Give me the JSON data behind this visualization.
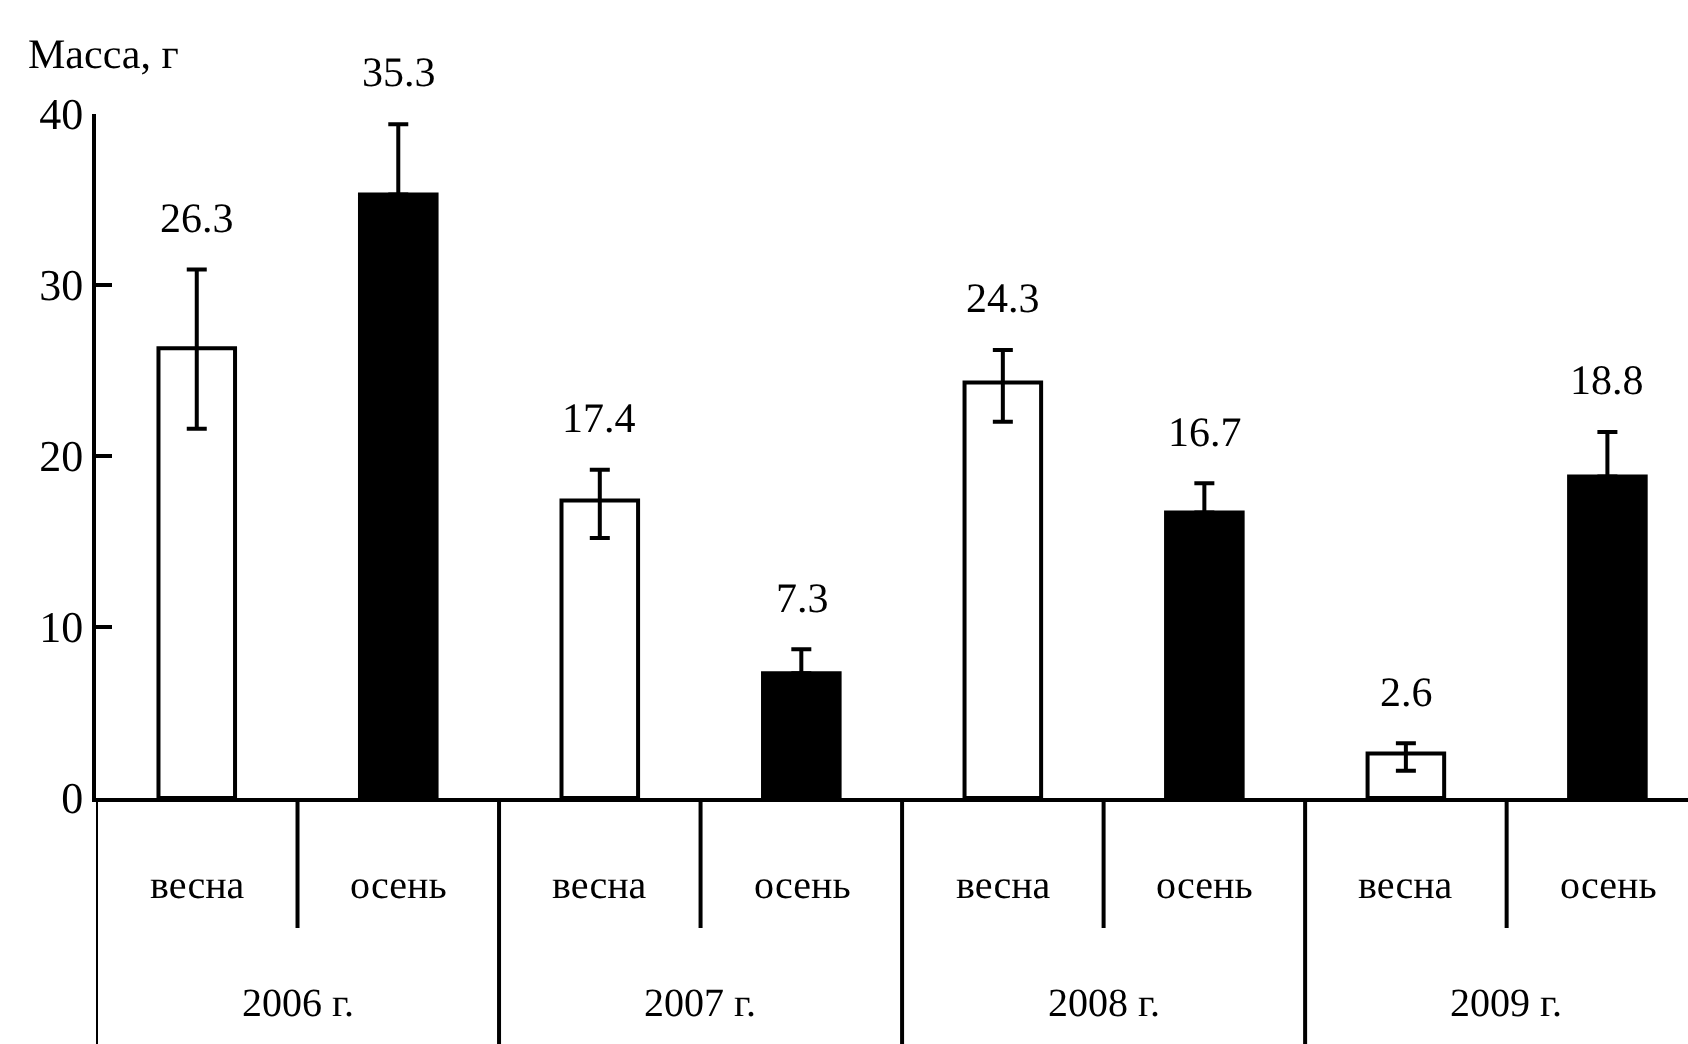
{
  "chart_data": {
    "type": "bar",
    "ylabel": "Масса, г",
    "categories": [
      "весна",
      "осень",
      "весна",
      "осень",
      "весна",
      "осень",
      "весна",
      "осень"
    ],
    "values": [
      26.3,
      35.3,
      17.4,
      7.3,
      24.3,
      16.7,
      2.6,
      18.8
    ],
    "colors": [
      "#ffffff",
      "#000000",
      "#ffffff",
      "#000000",
      "#ffffff",
      "#000000",
      "#ffffff",
      "#000000"
    ],
    "errors": [
      [
        21.6,
        30.9
      ],
      [
        35.3,
        39.4
      ],
      [
        15.2,
        19.2
      ],
      [
        7.3,
        8.7
      ],
      [
        22.0,
        26.2
      ],
      [
        16.7,
        18.4
      ],
      [
        1.6,
        3.2
      ],
      [
        18.8,
        21.4
      ]
    ],
    "annotations": [
      "2006 г.",
      "2007 г.",
      "2008 г.",
      "2009 г."
    ],
    "ylim": [
      0,
      40
    ],
    "yticks": [
      0,
      10,
      20,
      30,
      40
    ],
    "grid": false,
    "legend": false,
    "data_labels": true
  }
}
